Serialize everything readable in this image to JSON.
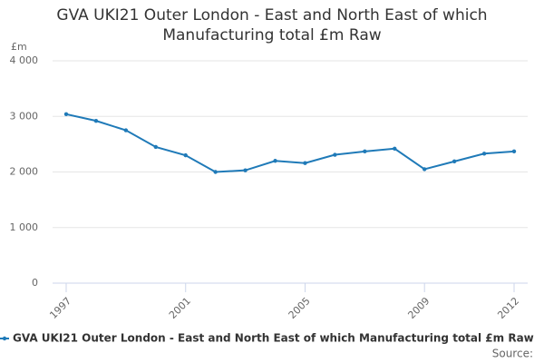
{
  "chart_data": {
    "type": "line",
    "title": "GVA UKI21 Outer London - East and North East of which Manufacturing total £m Raw",
    "y_axis_label": "£m",
    "x": [
      1997,
      1998,
      1999,
      2000,
      2001,
      2002,
      2003,
      2004,
      2005,
      2006,
      2007,
      2008,
      2009,
      2010,
      2011,
      2012
    ],
    "series": [
      {
        "name": "GVA UKI21 Outer London - East and North East of which Manufacturing total £m Raw",
        "color": "#1f7ab8",
        "values": [
          3040,
          2920,
          2750,
          2450,
          2300,
          2000,
          2030,
          2200,
          2160,
          2310,
          2370,
          2420,
          2050,
          2190,
          2330,
          2370
        ]
      }
    ],
    "xlim": [
      1997,
      2012
    ],
    "xticks": [
      1997,
      2001,
      2005,
      2009,
      2012
    ],
    "ylim": [
      0,
      4000
    ],
    "yticks": [
      0,
      {
        "value": 1000,
        "label": "1 000"
      },
      {
        "value": 2000,
        "label": "2 000"
      },
      {
        "value": 3000,
        "label": "3 000"
      },
      {
        "value": 4000,
        "label": "4 000"
      }
    ],
    "grid": true,
    "source": "Source:"
  }
}
